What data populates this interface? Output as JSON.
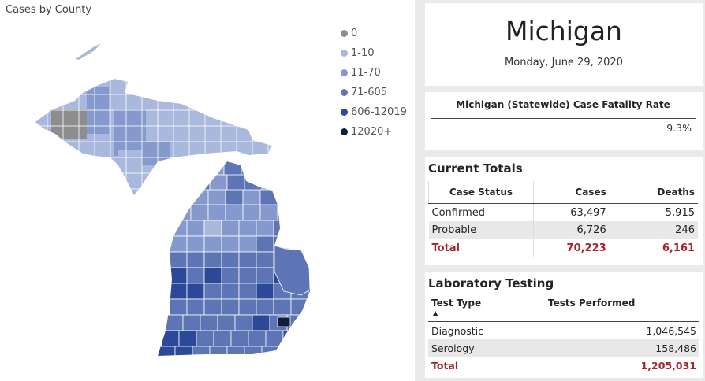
{
  "map": {
    "title": "Cases by County",
    "legend": [
      {
        "label": "0",
        "color": "#8d8d8d"
      },
      {
        "label": "1-10",
        "color": "#a9b8dd"
      },
      {
        "label": "11-70",
        "color": "#8699cd"
      },
      {
        "label": "71-605",
        "color": "#5d74b5"
      },
      {
        "label": "606-12019",
        "color": "#2c4899"
      },
      {
        "label": "12020+",
        "color": "#101e3c"
      }
    ]
  },
  "header": {
    "state": "Michigan",
    "date": "Monday, June 29, 2020"
  },
  "cfr": {
    "title": "Michigan (Statewide) Case Fatality Rate",
    "value": "9.3%"
  },
  "totals": {
    "title": "Current Totals",
    "columns": [
      "Case Status",
      "Cases",
      "Deaths"
    ],
    "rows": [
      {
        "status": "Confirmed",
        "cases": "63,497",
        "deaths": "5,915"
      },
      {
        "status": "Probable",
        "cases": "6,726",
        "deaths": "246"
      }
    ],
    "total": {
      "status": "Total",
      "cases": "70,223",
      "deaths": "6,161"
    }
  },
  "lab": {
    "title": "Laboratory Testing",
    "columns": [
      "Test Type",
      "Tests Performed"
    ],
    "rows": [
      {
        "type": "Diagnostic",
        "tests": "1,046,545"
      },
      {
        "type": "Serology",
        "tests": "158,486"
      }
    ],
    "total": {
      "type": "Total",
      "tests": "1,205,031"
    }
  }
}
